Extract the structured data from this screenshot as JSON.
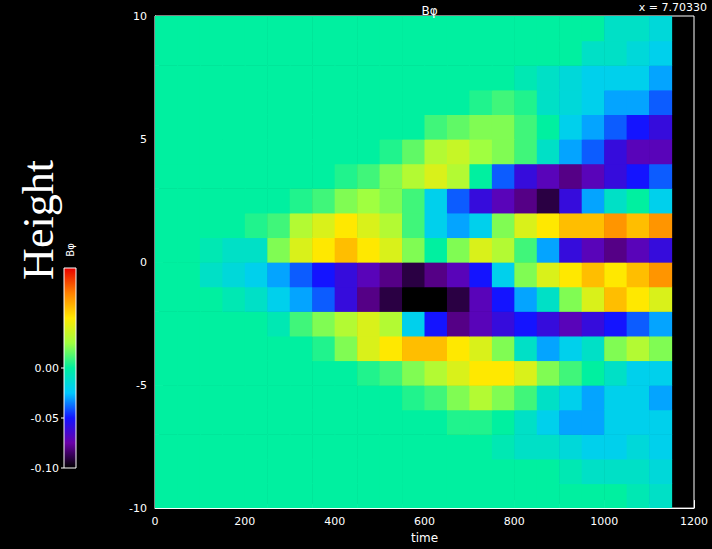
{
  "chart_data": {
    "type": "heatmap",
    "title": "Bφ",
    "annotation": "x = 7.70330",
    "xlabel": "time",
    "ylabel": "Height",
    "x_edges": [
      0,
      50,
      100,
      150,
      200,
      250,
      300,
      350,
      400,
      450,
      500,
      550,
      600,
      650,
      700,
      750,
      800,
      850,
      900,
      950,
      1000,
      1050,
      1100,
      1150
    ],
    "y_edges": [
      -10,
      -9,
      -8,
      -7,
      -6,
      -5,
      -4,
      -3,
      -2,
      -1,
      0,
      1,
      2,
      3,
      4,
      5,
      6,
      7,
      8,
      9,
      10
    ],
    "cells": [
      [
        0,
        0,
        0,
        0,
        0,
        0,
        0,
        0,
        0,
        0,
        0,
        0,
        0,
        0,
        0,
        0,
        0,
        0,
        0,
        0,
        0,
        -0.005,
        -0.01
      ],
      [
        0,
        0,
        0,
        0,
        0,
        0,
        0,
        0,
        0,
        0,
        0,
        0,
        0,
        0,
        0,
        0,
        0,
        0,
        -0.005,
        -0.01,
        -0.01,
        -0.01,
        -0.015
      ],
      [
        0,
        0,
        0,
        0,
        0,
        0,
        0,
        0,
        0,
        0,
        0,
        0,
        0,
        0,
        0,
        -0.005,
        -0.01,
        -0.01,
        -0.015,
        -0.02,
        -0.02,
        -0.015,
        -0.02
      ],
      [
        0,
        0,
        0,
        0,
        0,
        0,
        0,
        0,
        0,
        0,
        0,
        0,
        0,
        0.005,
        0.005,
        0,
        -0.01,
        -0.02,
        -0.03,
        -0.03,
        -0.02,
        -0.02,
        -0.02
      ],
      [
        0,
        0,
        0,
        0,
        0,
        0,
        0,
        0,
        0,
        0,
        0,
        0.005,
        0.01,
        0.02,
        0.03,
        0.02,
        0.01,
        -0.01,
        -0.02,
        -0.03,
        -0.02,
        -0.02,
        -0.03
      ],
      [
        0,
        0,
        0,
        0,
        0,
        0,
        0,
        0,
        0,
        0.005,
        0.01,
        0.02,
        0.03,
        0.04,
        0.05,
        0.05,
        0.04,
        0.02,
        0.01,
        0,
        -0.01,
        -0.02,
        -0.02
      ],
      [
        0,
        0,
        0,
        0,
        0,
        0,
        0,
        0.005,
        0.02,
        0.04,
        0.05,
        0.06,
        0.06,
        0.05,
        0.04,
        0.02,
        -0.01,
        -0.03,
        -0.02,
        -0.01,
        0.02,
        0.03,
        0.02
      ],
      [
        0,
        0,
        0,
        0,
        0,
        -0.005,
        0.01,
        0.02,
        0.03,
        0.04,
        0.03,
        -0.02,
        -0.05,
        -0.08,
        -0.07,
        -0.06,
        -0.05,
        -0.06,
        -0.07,
        -0.06,
        -0.05,
        -0.04,
        -0.03
      ],
      [
        0,
        0,
        0,
        -0.005,
        -0.01,
        -0.02,
        -0.03,
        -0.04,
        -0.06,
        -0.08,
        -0.09,
        -0.1,
        -0.1,
        -0.09,
        -0.07,
        -0.05,
        -0.03,
        -0.01,
        0.02,
        0.04,
        0.06,
        0.05,
        0.04
      ],
      [
        0,
        0,
        -0.01,
        -0.015,
        -0.02,
        -0.03,
        -0.04,
        -0.05,
        -0.06,
        -0.07,
        -0.08,
        -0.09,
        -0.08,
        -0.07,
        -0.05,
        -0.02,
        0.02,
        0.04,
        0.05,
        0.06,
        0.05,
        0.06,
        0.07
      ],
      [
        0,
        0,
        -0.005,
        -0.01,
        -0.01,
        0.02,
        0.04,
        0.05,
        0.06,
        0.05,
        0.04,
        0.02,
        0,
        0.02,
        0.04,
        0.03,
        0.01,
        -0.03,
        -0.06,
        -0.07,
        -0.08,
        -0.07,
        -0.06
      ],
      [
        0,
        0,
        0,
        0,
        0.005,
        0.01,
        0.03,
        0.04,
        0.05,
        0.04,
        0.03,
        0.01,
        -0.02,
        -0.03,
        -0.02,
        0.02,
        0.04,
        0.05,
        0.06,
        0.06,
        0.07,
        0.06,
        0.07
      ],
      [
        0,
        0,
        0,
        0,
        0,
        0,
        0.005,
        0.01,
        0.02,
        0.025,
        0.02,
        0.01,
        -0.02,
        -0.04,
        -0.06,
        -0.07,
        -0.08,
        -0.09,
        -0.06,
        -0.03,
        -0.01,
        0,
        -0.02
      ],
      [
        0,
        0,
        0,
        0,
        0,
        0,
        0,
        0,
        0.005,
        0.01,
        0.02,
        0.03,
        0.04,
        0.03,
        0,
        -0.04,
        -0.06,
        -0.07,
        -0.08,
        -0.07,
        -0.06,
        -0.05,
        -0.04
      ],
      [
        0,
        0,
        0,
        0,
        0,
        0,
        0,
        0,
        0,
        0,
        0.005,
        0.015,
        0.03,
        0.035,
        0.025,
        0.02,
        0.01,
        -0.01,
        -0.03,
        -0.04,
        -0.06,
        -0.07,
        -0.07
      ],
      [
        0,
        0,
        0,
        0,
        0,
        0,
        0,
        0,
        0,
        0,
        0,
        0,
        0.01,
        0.015,
        0.02,
        0.02,
        0.01,
        0,
        -0.02,
        -0.03,
        -0.04,
        -0.05,
        -0.06
      ],
      [
        0,
        0,
        0,
        0,
        0,
        0,
        0,
        0,
        0,
        0,
        0,
        0,
        0,
        0,
        0.005,
        0.01,
        0.005,
        -0.01,
        -0.015,
        -0.02,
        -0.03,
        -0.03,
        -0.04
      ],
      [
        0,
        0,
        0,
        0,
        0,
        0,
        0,
        0,
        0,
        0,
        0,
        0,
        0,
        0,
        0,
        0,
        -0.005,
        -0.01,
        -0.015,
        -0.02,
        -0.02,
        -0.02,
        -0.03
      ],
      [
        0,
        0,
        0,
        0,
        0,
        0,
        0,
        0,
        0,
        0,
        0,
        0,
        0,
        0,
        0,
        0,
        0,
        0,
        0,
        -0.01,
        -0.01,
        -0.015,
        -0.02
      ],
      [
        0,
        0,
        0,
        0,
        0,
        0,
        0,
        0,
        0,
        0,
        0,
        0,
        0,
        0,
        0,
        0,
        0,
        0,
        0,
        0,
        -0.01,
        -0.01,
        -0.015
      ]
    ],
    "xlim": [
      0,
      1200
    ],
    "xticks": [
      0,
      200,
      400,
      600,
      800,
      1000,
      1200
    ],
    "ylim": [
      -10,
      10
    ],
    "yticks": [
      -10,
      -5,
      0,
      5,
      10
    ],
    "colorbar": {
      "label": "Bφ",
      "lim": [
        -0.1,
        0.1
      ],
      "ticks": [
        {
          "value": 0,
          "label": "0.00"
        },
        -0.05,
        {
          "value": -0.1,
          "label": "-0.10"
        }
      ]
    }
  }
}
